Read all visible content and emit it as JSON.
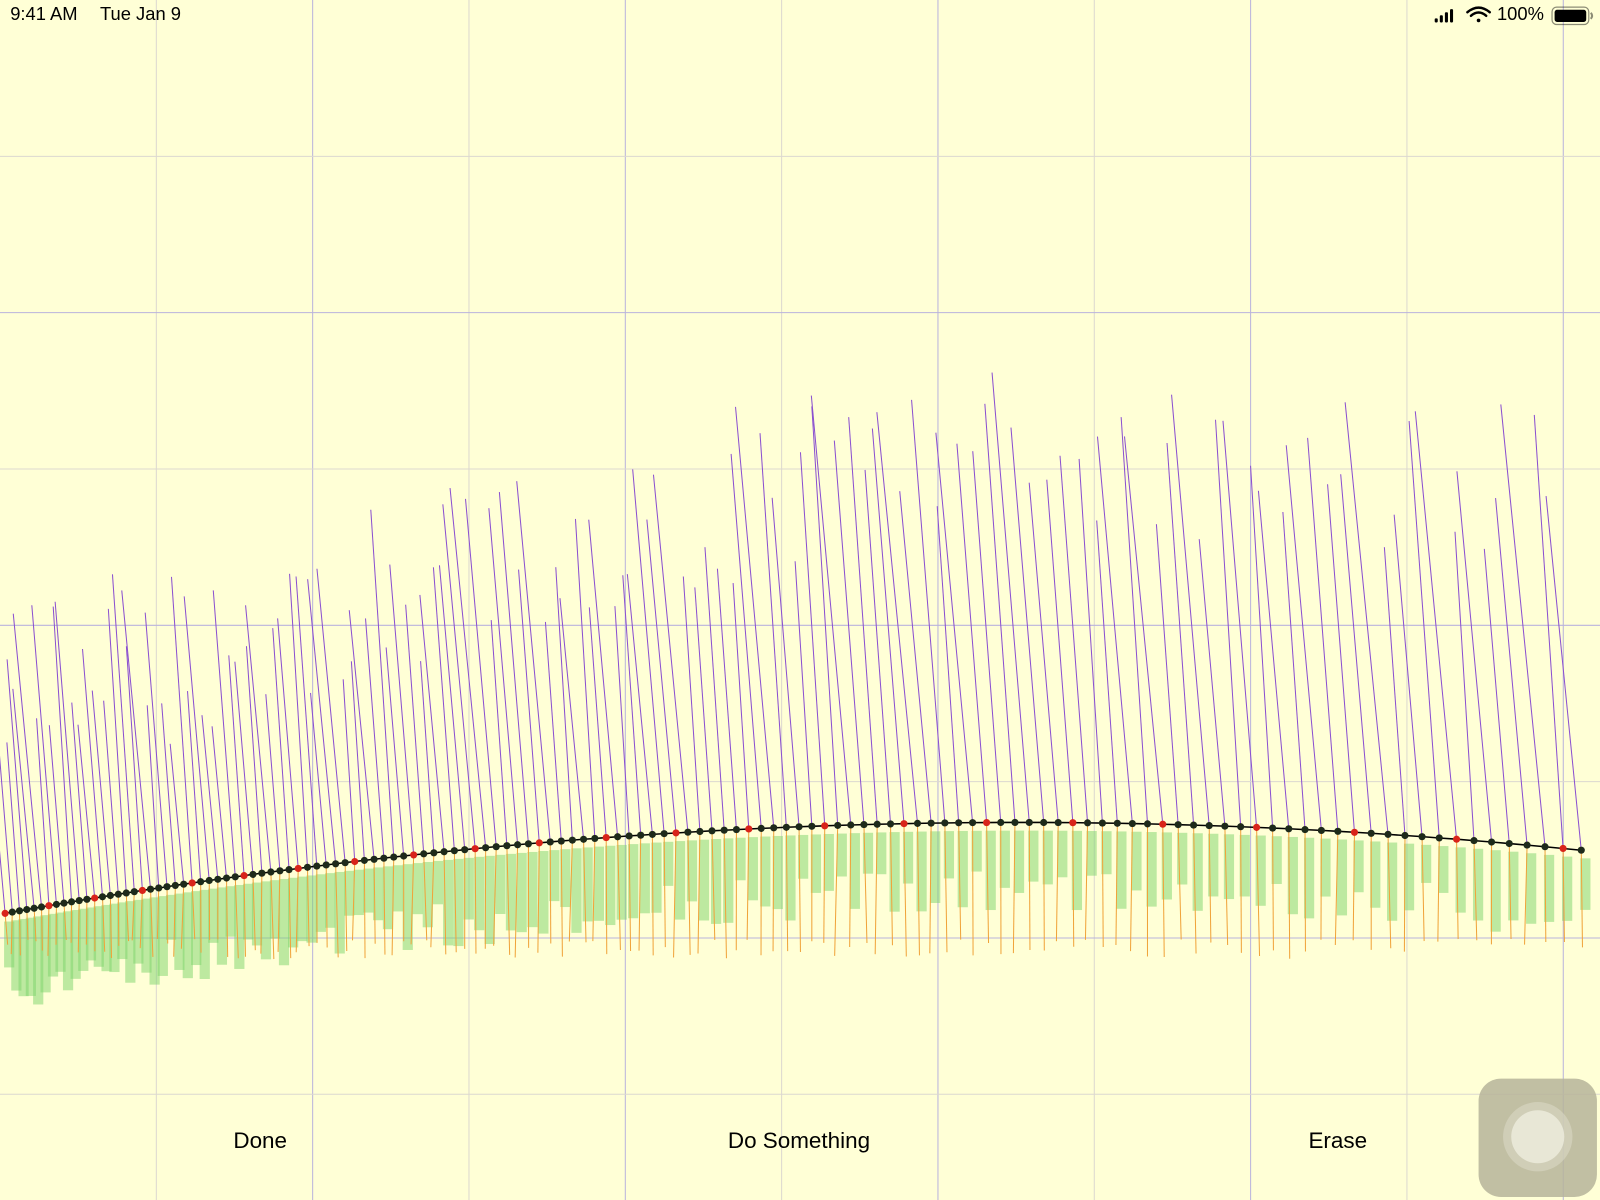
{
  "status_bar": {
    "time": "9:41 AM",
    "date": "Tue Jan 9",
    "battery": "100%"
  },
  "toolbar": {
    "buttons": [
      "Done",
      "Do Something",
      "Erase"
    ]
  }
}
